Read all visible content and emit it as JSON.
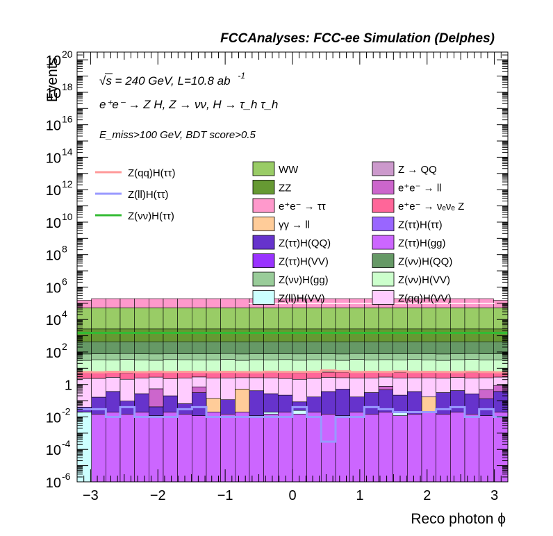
{
  "header": "FCCAnalyses: FCC-ee Simulation (Delphes)",
  "annotations": {
    "energy_line": "√s = 240 GeV, L=10.8 ab",
    "lumi_exponent": "-1",
    "process_line": "e⁺e⁻ → Z H, Z → νν, H → τ_h τ_h",
    "cuts_line": "E_miss>100 GeV, BDT score>0.5"
  },
  "chart_data": {
    "type": "bar",
    "stacked": true,
    "xlabel": "Reco photon ϕ",
    "ylabel": "Events",
    "xlim": [
      -3.2,
      3.2
    ],
    "ylim": [
      1e-06,
      3e+20
    ],
    "yscale": "log",
    "x_ticks": [
      -3,
      -2,
      -1,
      0,
      1,
      2,
      3
    ],
    "y_ticks": [
      {
        "value": 1e-06,
        "label": "10",
        "exp": "-6"
      },
      {
        "value": 0.0001,
        "label": "10",
        "exp": "-4"
      },
      {
        "value": 0.01,
        "label": "10",
        "exp": "-2"
      },
      {
        "value": 1,
        "label": "1",
        "exp": ""
      },
      {
        "value": 100.0,
        "label": "10",
        "exp": "2"
      },
      {
        "value": 10000.0,
        "label": "10",
        "exp": "4"
      },
      {
        "value": 1000000.0,
        "label": "10",
        "exp": "6"
      },
      {
        "value": 100000000.0,
        "label": "10",
        "exp": "8"
      },
      {
        "value": 10000000000.0,
        "label": "10",
        "exp": "10"
      },
      {
        "value": 1000000000000.0,
        "label": "10",
        "exp": "12"
      },
      {
        "value": 100000000000000.0,
        "label": "10",
        "exp": "14"
      },
      {
        "value": 1e+16,
        "label": "10",
        "exp": "16"
      },
      {
        "value": 1e+18,
        "label": "10",
        "exp": "18"
      },
      {
        "value": 1e+20,
        "label": "10",
        "exp": "20"
      }
    ],
    "bins": 30,
    "stack_layers": [
      {
        "name": "Z(ττ)H(gg)",
        "color": "#cc66ff",
        "values": [
          0,
          0.015,
          0.02,
          0.015,
          0.02,
          0.012,
          0.02,
          0.015,
          0.012,
          0.02,
          0.015,
          0.02,
          0.012,
          0.015,
          0.02,
          0.015,
          0.02,
          0.015,
          0.012,
          0.02,
          0.015,
          0.02,
          0.012,
          0.015,
          0.02,
          0.015,
          0.02,
          0.015,
          0.012,
          0.02
        ]
      },
      {
        "name": "Z(ll)H(VV)",
        "color": "#ccffff",
        "values": [
          0.02,
          0,
          0,
          0,
          0,
          0,
          0,
          0,
          0,
          0,
          0,
          0,
          0,
          0.005,
          0,
          0.01,
          0,
          0,
          0,
          0,
          0,
          0,
          0.008,
          0,
          0,
          0,
          0,
          0,
          0,
          0
        ]
      },
      {
        "name": "γγ → ll",
        "color": "#ffcc99",
        "values": [
          0,
          0,
          0,
          0,
          0,
          0,
          0,
          0,
          0,
          0.12,
          0,
          0.5,
          0,
          0,
          0,
          0,
          0,
          0,
          0,
          0,
          0,
          0,
          0,
          0,
          0.15,
          0,
          0,
          0,
          0,
          0
        ]
      },
      {
        "name": "Z(ττ)H(QQ)",
        "color": "#6633cc",
        "values": [
          0.02,
          0.15,
          0.35,
          0.08,
          0.25,
          0.03,
          0.18,
          0.05,
          0.3,
          0,
          0.1,
          0,
          0.4,
          0.25,
          0.2,
          0.06,
          0.15,
          0.35,
          0.5,
          0.15,
          0.3,
          0.45,
          0.2,
          0.35,
          0,
          0.3,
          0.4,
          0.25,
          0.12,
          0.35
        ]
      },
      {
        "name": "e⁺e⁻ → ll",
        "color": "#cc66cc",
        "values": [
          0,
          0,
          0,
          0,
          0,
          0.5,
          0,
          0,
          0.4,
          0,
          0,
          0,
          0,
          0,
          0,
          0,
          0,
          0,
          0,
          0,
          0,
          0.3,
          0,
          0,
          0,
          0,
          0,
          0,
          0.35,
          0.5
        ]
      },
      {
        "name": "Z(qq)H(VV)",
        "color": "#ffccff",
        "values": [
          2.3,
          2.2,
          2.4,
          2.0,
          2.2,
          2.3,
          2.1,
          2.4,
          2.2,
          2.3,
          2.4,
          2.1,
          2.2,
          2.3,
          2.1,
          2.0,
          2.2,
          2.4,
          2.1,
          2.3,
          2.2,
          2.1,
          2.3,
          2.2,
          2.4,
          2.1,
          2.3,
          2.2,
          2.1,
          2.0
        ]
      },
      {
        "name": "e⁺e⁻ → νₑνₑ Z",
        "color": "#ff6699",
        "values": [
          3,
          3,
          3,
          3,
          3,
          3,
          3,
          3,
          3,
          3,
          3,
          3,
          3,
          3,
          3,
          3,
          3,
          3,
          3,
          3,
          3,
          3,
          3,
          3,
          3,
          3,
          3,
          3,
          3,
          3
        ]
      },
      {
        "name": "Z(νν)H(VV)",
        "color": "#ccffcc",
        "values": [
          25,
          28,
          26,
          30,
          27,
          25,
          29,
          28,
          26,
          27,
          30,
          25,
          28,
          27,
          29,
          26,
          28,
          27,
          25,
          30,
          27,
          28,
          26,
          29,
          27,
          25,
          28,
          30,
          27,
          26
        ]
      },
      {
        "name": "Z(νν)H(gg)",
        "color": "#99cc99",
        "values": [
          45,
          45,
          45,
          45,
          45,
          45,
          45,
          45,
          45,
          45,
          45,
          45,
          45,
          45,
          45,
          45,
          45,
          45,
          45,
          45,
          45,
          45,
          45,
          45,
          45,
          45,
          45,
          45,
          45,
          45
        ]
      },
      {
        "name": "Z(νν)H(QQ)",
        "color": "#669966",
        "values": [
          350,
          350,
          350,
          350,
          350,
          350,
          350,
          350,
          350,
          350,
          350,
          350,
          350,
          350,
          350,
          350,
          350,
          350,
          350,
          350,
          350,
          350,
          350,
          350,
          350,
          350,
          350,
          350,
          350,
          350
        ]
      },
      {
        "name": "ZZ",
        "color": "#669933",
        "values": [
          2200,
          2200,
          2200,
          2200,
          2200,
          2200,
          2200,
          2200,
          2200,
          2200,
          2200,
          2200,
          2200,
          2200,
          2200,
          2200,
          2200,
          2200,
          2200,
          2200,
          2200,
          2200,
          2200,
          2200,
          2200,
          2200,
          2200,
          2200,
          2200,
          2200
        ]
      },
      {
        "name": "WW",
        "color": "#99cc66",
        "values": [
          50000,
          50000,
          50000,
          50000,
          50000,
          50000,
          50000,
          50000,
          50000,
          50000,
          50000,
          50000,
          50000,
          50000,
          50000,
          50000,
          50000,
          50000,
          50000,
          50000,
          50000,
          50000,
          50000,
          50000,
          50000,
          50000,
          50000,
          50000,
          50000,
          50000
        ]
      },
      {
        "name": "e⁺e⁻ → ττ",
        "color": "#ff99cc",
        "values": [
          100000,
          140000,
          140000,
          140000,
          140000,
          140000,
          140000,
          140000,
          140000,
          140000,
          140000,
          140000,
          140000,
          140000,
          140000,
          140000,
          140000,
          140000,
          140000,
          140000,
          140000,
          140000,
          140000,
          140000,
          140000,
          140000,
          140000,
          140000,
          140000,
          100000
        ]
      }
    ],
    "signal_lines": [
      {
        "name": "Z(qq)H(ττ)",
        "color": "#ff9999",
        "values": [
          5.8,
          5.6,
          6.0,
          5.9,
          5.7,
          6.1,
          5.8,
          6.0,
          5.9,
          5.7,
          6.0,
          5.8,
          5.6,
          6.1,
          5.9,
          5.8,
          6.0,
          7.2,
          6.5,
          5.8,
          6.0,
          5.9,
          6.3,
          5.8,
          6.0,
          5.9,
          5.7,
          6.1,
          5.8,
          5.6
        ]
      },
      {
        "name": "Z(ll)H(ττ)",
        "color": "#9999ff",
        "values": [
          0.03,
          0.03,
          0.01,
          0.04,
          0.01,
          0.01,
          0.01,
          0.03,
          0.04,
          0.01,
          0.01,
          0.01,
          0.01,
          0.01,
          0.01,
          0.04,
          0.01,
          0.0003,
          0.01,
          0.01,
          0.04,
          0.03,
          0.02,
          0.02,
          0.02,
          0.03,
          0.04,
          0.01,
          0.03,
          0.01
        ]
      },
      {
        "name": "Z(νν)H(ττ)",
        "color": "#33bb33",
        "values": [
          1500,
          1500,
          1500,
          1500,
          1500,
          1500,
          1500,
          1500,
          1500,
          1500,
          1500,
          1500,
          1500,
          1500,
          1500,
          1500,
          1500,
          1500,
          1500,
          1500,
          1500,
          1500,
          1500,
          1500,
          1500,
          1500,
          1500,
          1500,
          1500,
          1500
        ]
      }
    ],
    "legend_lines": [
      "Z(qq)H(ττ)",
      "Z(ll)H(ττ)",
      "Z(νν)H(ττ)"
    ],
    "legend_boxes": [
      {
        "name": "WW",
        "color": "#99cc66"
      },
      {
        "name": "Z → QQ",
        "color": "#cc99cc"
      },
      {
        "name": "ZZ",
        "color": "#669933"
      },
      {
        "name": "e⁺e⁻ → ll",
        "color": "#cc66cc"
      },
      {
        "name": "e⁺e⁻ → ττ",
        "color": "#ff99cc"
      },
      {
        "name": "e⁺e⁻ → νₑνₑ Z",
        "color": "#ff6699"
      },
      {
        "name": "γγ → ll",
        "color": "#ffcc99"
      },
      {
        "name": "Z(ττ)H(ττ)",
        "color": "#9966ff"
      },
      {
        "name": "Z(ττ)H(QQ)",
        "color": "#6633cc"
      },
      {
        "name": "Z(ττ)H(gg)",
        "color": "#cc66ff"
      },
      {
        "name": "Z(ττ)H(VV)",
        "color": "#9933ff"
      },
      {
        "name": "Z(νν)H(QQ)",
        "color": "#669966"
      },
      {
        "name": "Z(νν)H(gg)",
        "color": "#99cc99"
      },
      {
        "name": "Z(νν)H(VV)",
        "color": "#ccffcc"
      },
      {
        "name": "Z(ll)H(VV)",
        "color": "#ccffff"
      },
      {
        "name": "Z(qq)H(VV)",
        "color": "#ffccff"
      }
    ]
  }
}
